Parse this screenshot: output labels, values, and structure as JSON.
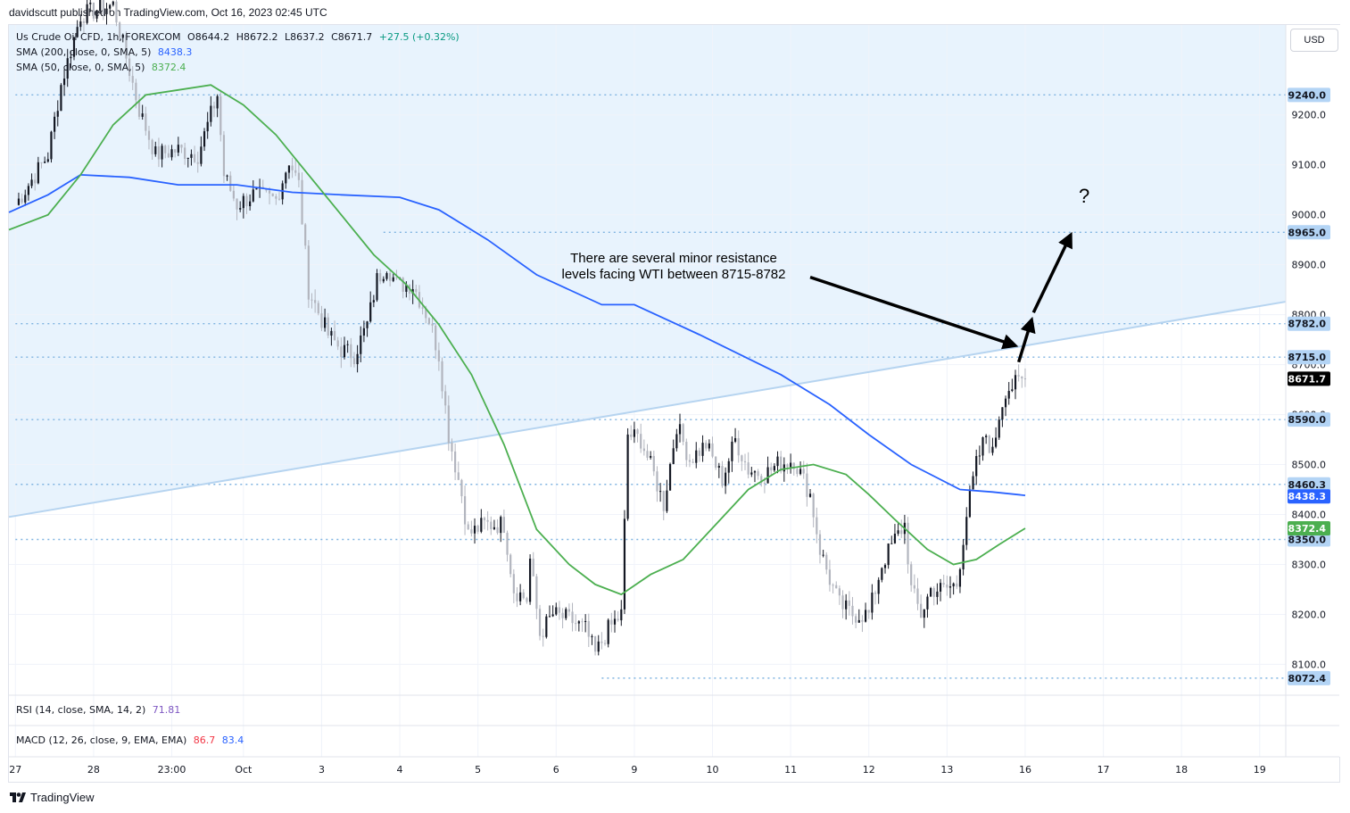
{
  "header": {
    "published_text": "davidscutt published on TradingView.com, Oct 16, 2023 02:45 UTC"
  },
  "legend": {
    "symbol_line": "Us Crude Oil CFD, 1h, FOREXCOM",
    "open": "O8644.2",
    "high": "H8672.2",
    "low": "L8637.2",
    "close": "C8671.7",
    "change": "+27.5 (+0.32%)",
    "sma200_label": "SMA (200, close, 0, SMA, 5)",
    "sma200_value": "8438.3",
    "sma50_label": "SMA (50, close, 0, SMA, 5)",
    "sma50_value": "8372.4",
    "rsi_label": "RSI (14, close, SMA, 14, 2)",
    "rsi_value": "71.81",
    "macd_label": "MACD (12, 26, close, 9, EMA, EMA)",
    "macd_value": "86.7",
    "macd_signal": "83.4"
  },
  "currency_button": "USD",
  "annotation": {
    "text_line1": "There are several minor resistance",
    "text_line2": "levels facing WTI between 8715-8782",
    "question_mark": "?"
  },
  "brand": {
    "name": "TradingView"
  },
  "colors": {
    "up": "#131722",
    "down": "#b2b5be",
    "sma200": "#2962ff",
    "sma50": "#4caf50",
    "level_line": "#7fb3e0",
    "trendline": "#b6d4f0",
    "zone": "#e8f3fd",
    "rsi": "#7e57c2",
    "macd": "#f23645",
    "macd_signal": "#2962ff",
    "last_price_bg": "#000000",
    "level_label_bg": "#b3d4f5"
  },
  "chart_data": {
    "type": "candlestick",
    "instrument": "Us Crude Oil CFD",
    "interval": "1h",
    "source": "FOREXCOM",
    "ylim": [
      8040,
      9380
    ],
    "y_ticks": [
      8100,
      8200,
      8300,
      8400,
      8500,
      8600,
      8700,
      8800,
      8900,
      9000,
      9100,
      9200
    ],
    "x_ticks": [
      "27",
      "28",
      "23:00",
      "Oct",
      "3",
      "4",
      "5",
      "6",
      "9",
      "10",
      "11",
      "12",
      "13",
      "16",
      "17",
      "18",
      "19"
    ],
    "x_tick_positions": [
      0,
      24,
      48,
      70,
      94,
      118,
      142,
      166,
      190,
      214,
      238,
      262,
      286,
      310,
      334,
      358,
      382
    ],
    "x_range": [
      -2,
      390
    ],
    "horizontal_levels": [
      9240.0,
      8965.0,
      8782.0,
      8715.0,
      8590.0,
      8460.3,
      8350.0,
      8072.4
    ],
    "level_labels": [
      "9240.0",
      "8965.0",
      "8782.0",
      "8715.0",
      "8590.0",
      "8460.3",
      "8350.0",
      "8072.4"
    ],
    "level_starts": [
      0,
      113,
      0,
      0,
      0,
      0,
      0,
      180
    ],
    "last_price": 8671.7,
    "last_price_label": "8671.7",
    "sma200_last_label": "8438.3",
    "sma50_last_label": "8372.4",
    "trendline": {
      "from": [
        -2,
        8395
      ],
      "to": [
        390,
        8826
      ]
    },
    "arrow_points": [
      [
        308,
        8705
      ],
      [
        312,
        8790
      ],
      [
        324,
        8960
      ]
    ],
    "annotation_arrow": {
      "from": [
        244,
        8875
      ],
      "to": [
        307,
        8738
      ]
    },
    "candle_anchors": [
      [
        0,
        9020
      ],
      [
        10,
        9120
      ],
      [
        14,
        9260
      ],
      [
        20,
        9400
      ],
      [
        30,
        9420
      ],
      [
        38,
        9210
      ],
      [
        43,
        9120
      ],
      [
        50,
        9130
      ],
      [
        56,
        9120
      ],
      [
        62,
        9240
      ],
      [
        64,
        9080
      ],
      [
        68,
        9020
      ],
      [
        73,
        9040
      ],
      [
        80,
        9030
      ],
      [
        84,
        9110
      ],
      [
        87,
        9060
      ],
      [
        90,
        8850
      ],
      [
        96,
        8760
      ],
      [
        100,
        8730
      ],
      [
        104,
        8720
      ],
      [
        108,
        8780
      ],
      [
        111,
        8870
      ],
      [
        114,
        8900
      ],
      [
        117,
        8860
      ],
      [
        122,
        8860
      ],
      [
        127,
        8790
      ],
      [
        130,
        8720
      ],
      [
        133,
        8560
      ],
      [
        137,
        8440
      ],
      [
        139,
        8360
      ],
      [
        144,
        8380
      ],
      [
        150,
        8380
      ],
      [
        153,
        8250
      ],
      [
        157,
        8230
      ],
      [
        158,
        8310
      ],
      [
        161,
        8160
      ],
      [
        165,
        8200
      ],
      [
        170,
        8190
      ],
      [
        175,
        8170
      ],
      [
        178,
        8120
      ],
      [
        182,
        8170
      ],
      [
        186,
        8200
      ],
      [
        188,
        8560
      ],
      [
        192,
        8550
      ],
      [
        196,
        8480
      ],
      [
        199,
        8420
      ],
      [
        203,
        8580
      ],
      [
        207,
        8510
      ],
      [
        212,
        8540
      ],
      [
        217,
        8470
      ],
      [
        221,
        8550
      ],
      [
        225,
        8490
      ],
      [
        230,
        8480
      ],
      [
        234,
        8500
      ],
      [
        239,
        8510
      ],
      [
        244,
        8440
      ],
      [
        247,
        8330
      ],
      [
        250,
        8270
      ],
      [
        253,
        8220
      ],
      [
        257,
        8200
      ],
      [
        262,
        8200
      ],
      [
        266,
        8300
      ],
      [
        270,
        8350
      ],
      [
        273,
        8380
      ],
      [
        275,
        8250
      ],
      [
        278,
        8200
      ],
      [
        281,
        8250
      ],
      [
        285,
        8250
      ],
      [
        289,
        8260
      ],
      [
        292,
        8400
      ],
      [
        295,
        8500
      ],
      [
        298,
        8560
      ],
      [
        300,
        8520
      ],
      [
        302,
        8600
      ],
      [
        304,
        8650
      ],
      [
        307,
        8660
      ],
      [
        310,
        8671.7
      ]
    ],
    "sma200_anchors": [
      [
        -2,
        9005
      ],
      [
        10,
        9040
      ],
      [
        20,
        9080
      ],
      [
        35,
        9075
      ],
      [
        50,
        9060
      ],
      [
        68,
        9060
      ],
      [
        85,
        9045
      ],
      [
        100,
        9040
      ],
      [
        118,
        9035
      ],
      [
        130,
        9010
      ],
      [
        145,
        8950
      ],
      [
        160,
        8880
      ],
      [
        180,
        8820
      ],
      [
        190,
        8820
      ],
      [
        210,
        8760
      ],
      [
        235,
        8680
      ],
      [
        250,
        8620
      ],
      [
        262,
        8560
      ],
      [
        275,
        8500
      ],
      [
        290,
        8450
      ],
      [
        300,
        8445
      ],
      [
        310,
        8438.3
      ]
    ],
    "sma50_anchors": [
      [
        -2,
        8970
      ],
      [
        10,
        9000
      ],
      [
        20,
        9080
      ],
      [
        30,
        9180
      ],
      [
        40,
        9240
      ],
      [
        50,
        9250
      ],
      [
        60,
        9260
      ],
      [
        70,
        9220
      ],
      [
        80,
        9160
      ],
      [
        90,
        9080
      ],
      [
        100,
        9000
      ],
      [
        110,
        8920
      ],
      [
        120,
        8860
      ],
      [
        130,
        8780
      ],
      [
        140,
        8680
      ],
      [
        150,
        8540
      ],
      [
        160,
        8370
      ],
      [
        170,
        8300
      ],
      [
        178,
        8260
      ],
      [
        186,
        8240
      ],
      [
        195,
        8280
      ],
      [
        205,
        8310
      ],
      [
        215,
        8380
      ],
      [
        225,
        8450
      ],
      [
        235,
        8490
      ],
      [
        245,
        8500
      ],
      [
        255,
        8480
      ],
      [
        262,
        8440
      ],
      [
        270,
        8390
      ],
      [
        280,
        8330
      ],
      [
        288,
        8300
      ],
      [
        295,
        8310
      ],
      [
        302,
        8340
      ],
      [
        310,
        8372.4
      ]
    ],
    "rsi_latest": 71.81,
    "macd_latest": 86.7,
    "macd_signal_latest": 83.4
  }
}
